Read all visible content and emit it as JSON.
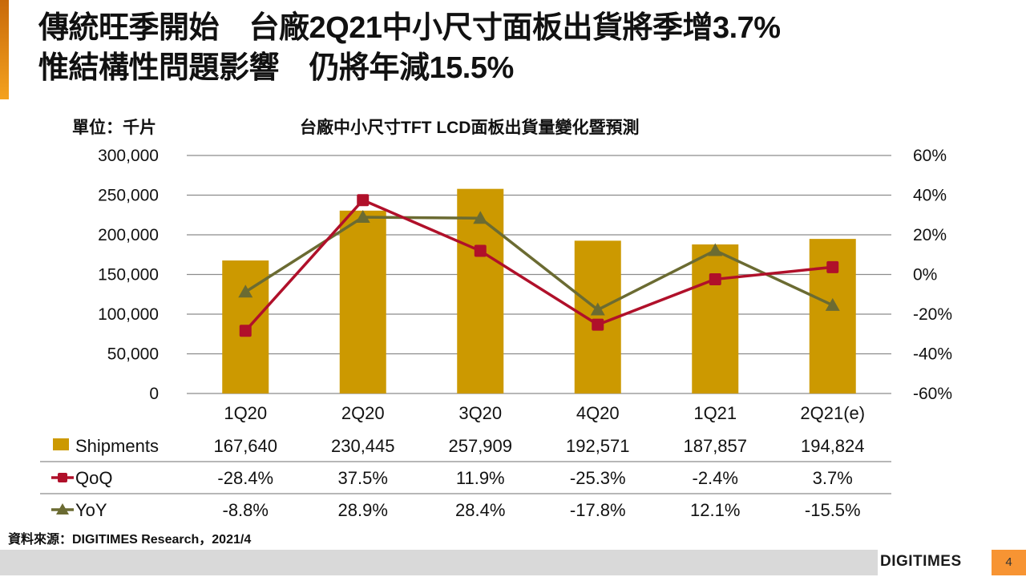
{
  "slide": {
    "title_line1": "傳統旺季開始　台廠2Q21中小尺寸面板出貨將季增3.7%",
    "title_line2": "惟結構性問題影響　仍將年減15.5%",
    "unit_label": "單位：千片",
    "source": "資料來源：DIGITIMES Research，2021/4",
    "logo": "DIGITIMES",
    "page_number": "4"
  },
  "colors": {
    "accent": "#f4a21e",
    "bar": "#cc9900",
    "qoq": "#b0102a",
    "yoy": "#6b6b32",
    "grid": "#8c8c8c",
    "footer_band": "#d9d9d9",
    "page_badge": "#f79433"
  },
  "chart_data": {
    "type": "bar",
    "title": "台廠中小尺寸TFT LCD面板出貨量變化暨預測",
    "xlabel": "",
    "ylabel": "單位：千片",
    "categories": [
      "1Q20",
      "2Q20",
      "3Q20",
      "4Q20",
      "1Q21",
      "2Q21(e)"
    ],
    "left_axis": {
      "range": [
        0,
        300000
      ],
      "ticks": [
        0,
        50000,
        100000,
        150000,
        200000,
        250000,
        300000
      ],
      "tick_labels": [
        "0",
        "50,000",
        "100,000",
        "150,000",
        "200,000",
        "250,000",
        "300,000"
      ]
    },
    "right_axis": {
      "range": [
        -60,
        60
      ],
      "ticks": [
        -60,
        -40,
        -20,
        0,
        20,
        40,
        60
      ],
      "tick_labels": [
        "-60%",
        "-40%",
        "-20%",
        "0%",
        "20%",
        "40%",
        "60%"
      ]
    },
    "grid": true,
    "legend": "data-table-below",
    "series": [
      {
        "name": "Shipments",
        "type": "bar",
        "axis": "left",
        "marker": "square-swatch",
        "values": [
          167640,
          230445,
          257909,
          192571,
          187857,
          194824
        ],
        "labels": [
          "167,640",
          "230,445",
          "257,909",
          "192,571",
          "187,857",
          "194,824"
        ]
      },
      {
        "name": "QoQ",
        "type": "line",
        "axis": "right",
        "marker": "square",
        "values": [
          -28.4,
          37.5,
          11.9,
          -25.3,
          -2.4,
          3.7
        ],
        "labels": [
          "-28.4%",
          "37.5%",
          "11.9%",
          "-25.3%",
          "-2.4%",
          "3.7%"
        ]
      },
      {
        "name": "YoY",
        "type": "line",
        "axis": "right",
        "marker": "triangle",
        "values": [
          -8.8,
          28.9,
          28.4,
          -17.8,
          12.1,
          -15.5
        ],
        "labels": [
          "-8.8%",
          "28.9%",
          "28.4%",
          "-17.8%",
          "12.1%",
          "-15.5%"
        ]
      }
    ]
  }
}
